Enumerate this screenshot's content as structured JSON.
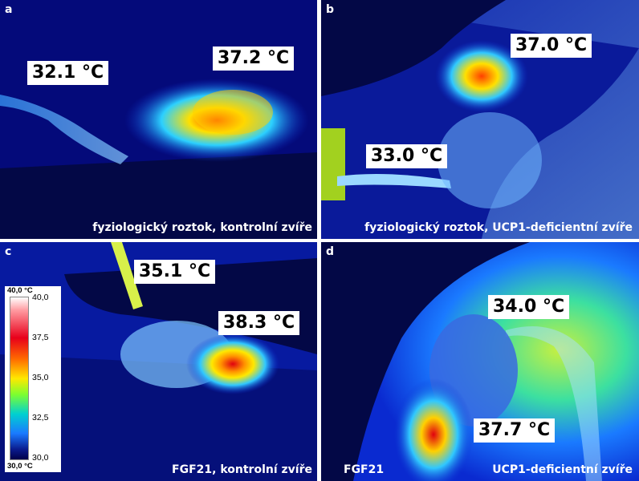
{
  "panels": {
    "a": {
      "letter": "a",
      "temp_1": "32.1 °C",
      "temp_2": "37.2 °C",
      "caption": "fyziologický roztok, kontrolní zvíře"
    },
    "b": {
      "letter": "b",
      "temp_1": "37.0 °C",
      "temp_2": "33.0 °C",
      "caption": "fyziologický roztok, UCP1-deficientní zvíře"
    },
    "c": {
      "letter": "c",
      "temp_1": "35.1 °C",
      "temp_2": "38.3 °C",
      "caption": "FGF21, kontrolní zvíře"
    },
    "d": {
      "letter": "d",
      "temp_1": "34.0 °C",
      "temp_2": "37.7 °C",
      "caption_left": "FGF21",
      "caption_right": "UCP1-deficientní zvíře"
    }
  },
  "color_scale": {
    "max_label": "40,0 °C",
    "min_label": "30,0 °C",
    "ticks": [
      "40,0",
      "37,5",
      "35,0",
      "32,5",
      "30,0"
    ]
  }
}
